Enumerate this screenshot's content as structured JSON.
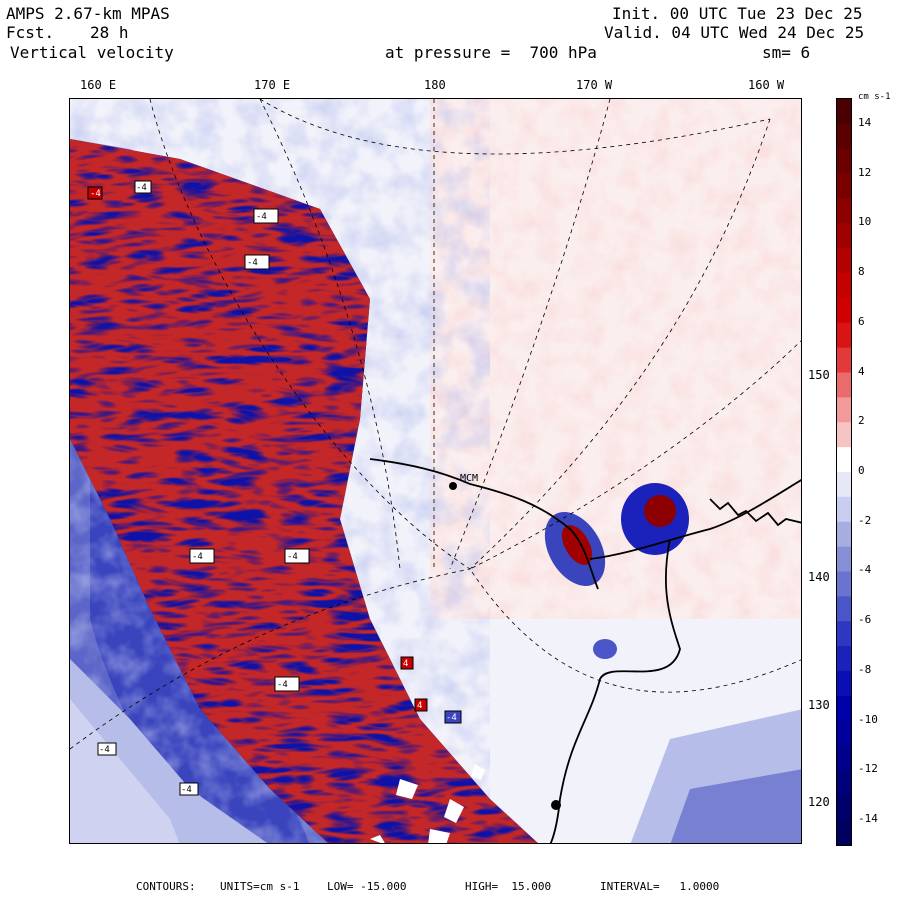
{
  "header": {
    "model": "AMPS 2.67-km MPAS",
    "fcst_label": "Fcst.",
    "fcst_value": "28 h",
    "field": "Vertical velocity",
    "init": "Init. 00 UTC Tue 23 Dec 25",
    "valid": "Valid. 04 UTC Wed 24 Dec 25",
    "pressure_text": "at pressure =  700 hPa",
    "smoothing": "sm= 6"
  },
  "map": {
    "lon_labels": [
      "160 E",
      "170 E",
      "180",
      "170 W",
      "160 W"
    ],
    "lat_labels": [
      "150 W",
      "140 W",
      "130 W",
      "120 W"
    ],
    "station_label": "MCM",
    "contour_box_labels": [
      "-4",
      "-4",
      "-4",
      "-4",
      "-4",
      "-4",
      "-4",
      "4",
      "4",
      "-4",
      "-4",
      "-4"
    ]
  },
  "colorbar": {
    "units": "cm s-1",
    "ticks": [
      14,
      12,
      10,
      8,
      6,
      4,
      2,
      0,
      -2,
      -4,
      -6,
      -8,
      -10,
      -12,
      -14
    ],
    "range": [
      -15,
      15
    ],
    "colors": {
      "pos": [
        "#fbe2e2",
        "#f7c4c4",
        "#f29a9a",
        "#ea6b6b",
        "#e23a3a",
        "#d81414",
        "#d00000",
        "#c40000",
        "#b30000",
        "#a00000",
        "#8c0000",
        "#7a0000",
        "#6a0000",
        "#5a0000",
        "#4a0000"
      ],
      "neg": [
        "#e6e8f7",
        "#c9cdf0",
        "#a6addf",
        "#8790d6",
        "#6a74cf",
        "#4a55c8",
        "#2d37c2",
        "#1a22bb",
        "#0a0fb5",
        "#0000aa",
        "#00009a",
        "#00008a",
        "#00007b",
        "#00006d",
        "#000060"
      ],
      "zero": "#ffffff"
    }
  },
  "footer": {
    "contours": "CONTOURS:",
    "units": "UNITS=cm s-1",
    "low": "LOW= -15.000",
    "high": "HIGH=  15.000",
    "interval": "INTERVAL=   1.0000"
  }
}
